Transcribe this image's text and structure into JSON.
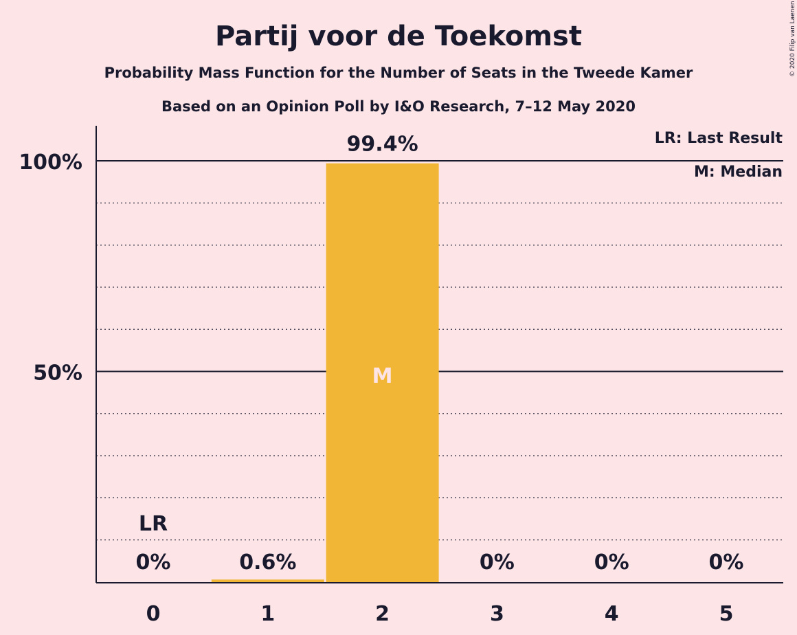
{
  "chart_data": {
    "type": "bar",
    "title": "Partij voor de Toekomst",
    "subtitle": "Probability Mass Function for the Number of Seats in the Tweede Kamer",
    "subtitle2": "Based on an Opinion Poll by I&O Research, 7–12 May 2020",
    "categories": [
      "0",
      "1",
      "2",
      "3",
      "4",
      "5"
    ],
    "values": [
      0,
      0.6,
      99.4,
      0,
      0,
      0
    ],
    "value_labels": [
      "0%",
      "0.6%",
      "99.4%",
      "0%",
      "0%",
      "0%"
    ],
    "ylim": [
      0,
      100
    ],
    "y_ticks": [
      {
        "value": 50,
        "label": "50%"
      },
      {
        "value": 100,
        "label": "100%"
      }
    ],
    "minor_gridlines": [
      10,
      20,
      30,
      40,
      60,
      70,
      80,
      90
    ],
    "grid": true,
    "last_result": {
      "category": "0",
      "label": "LR"
    },
    "median": {
      "category": "2",
      "label": "M"
    },
    "legend": [
      "LR: Last Result",
      "M: Median"
    ],
    "legend_position": "top-right",
    "bar_color": "#f2b637",
    "copyright": "© 2020 Filip van Laenen"
  }
}
